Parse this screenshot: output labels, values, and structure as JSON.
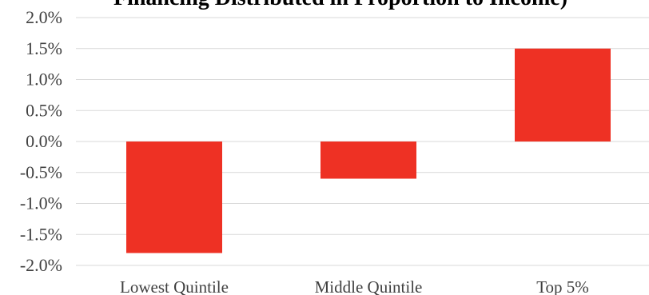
{
  "chart_data": {
    "type": "bar",
    "title": "Financing Distributed in Proportion to Income)",
    "categories": [
      "Lowest Quintile",
      "Middle Quintile",
      "Top 5%"
    ],
    "values": [
      -1.8,
      -0.6,
      1.5
    ],
    "ylim": [
      -2.0,
      2.0
    ],
    "yticks": [
      "2.0%",
      "1.5%",
      "1.0%",
      "0.5%",
      "0.0%",
      "-0.5%",
      "-1.0%",
      "-1.5%",
      "-2.0%"
    ],
    "ytick_values": [
      2.0,
      1.5,
      1.0,
      0.5,
      0.0,
      -0.5,
      -1.0,
      -1.5,
      -2.0
    ],
    "grid": true,
    "bar_color": "#ee3124",
    "grid_color": "#d9d9d9"
  }
}
